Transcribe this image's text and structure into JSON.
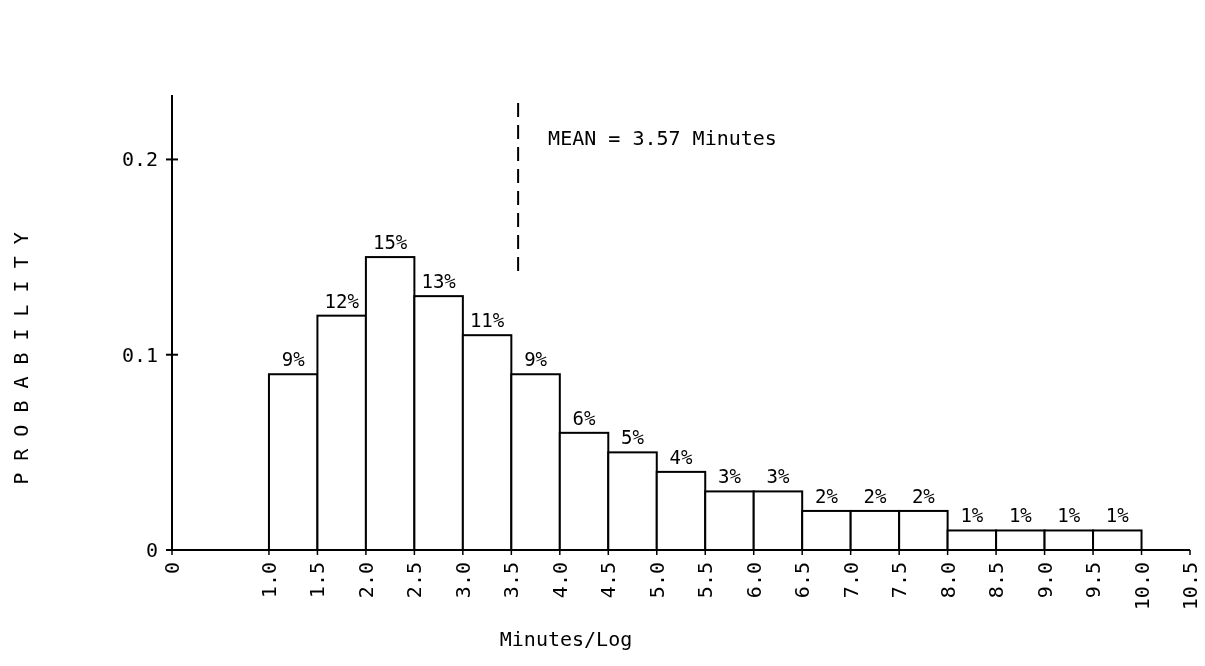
{
  "chart_data": {
    "type": "histogram",
    "xlabel": "Minutes/Log",
    "ylabel": "PROBABILITY",
    "bins": [
      1.0,
      1.5,
      2.0,
      2.5,
      3.0,
      3.5,
      4.0,
      4.5,
      5.0,
      5.5,
      6.0,
      6.5,
      7.0,
      7.5,
      8.0,
      8.5,
      9.0,
      9.5,
      10.0
    ],
    "values": [
      0.09,
      0.12,
      0.15,
      0.13,
      0.11,
      0.09,
      0.06,
      0.05,
      0.04,
      0.03,
      0.03,
      0.02,
      0.02,
      0.02,
      0.01,
      0.01,
      0.01,
      0.01
    ],
    "value_labels": [
      "9%",
      "12%",
      "15%",
      "13%",
      "11%",
      "9%",
      "6%",
      "5%",
      "4%",
      "3%",
      "3%",
      "2%",
      "2%",
      "2%",
      "1%",
      "1%",
      "1%",
      "1%"
    ],
    "color": "#ffffff",
    "xlim": [
      0,
      10.5
    ],
    "xticks": [
      0,
      {
        "value": 1,
        "label": "1.0"
      },
      1.5,
      {
        "value": 2,
        "label": "2.0"
      },
      2.5,
      {
        "value": 3,
        "label": "3.0"
      },
      3.5,
      {
        "value": 4,
        "label": "4.0"
      },
      4.5,
      {
        "value": 5,
        "label": "5.0"
      },
      5.5,
      {
        "value": 6,
        "label": "6.0"
      },
      6.5,
      {
        "value": 7,
        "label": "7.0"
      },
      7.5,
      {
        "value": 8,
        "label": "8.0"
      },
      8.5,
      {
        "value": 9,
        "label": "9.0"
      },
      9.5,
      {
        "value": 10,
        "label": "10.0"
      },
      10.5
    ],
    "ylim": [
      0,
      0.233
    ],
    "yticks": [
      0,
      0.1,
      0.2
    ],
    "ref_lines": [
      {
        "axis": "x",
        "value": 3.57,
        "label": "MEAN = 3.57 Minutes",
        "line_style": "dashed"
      }
    ],
    "grid": false
  }
}
